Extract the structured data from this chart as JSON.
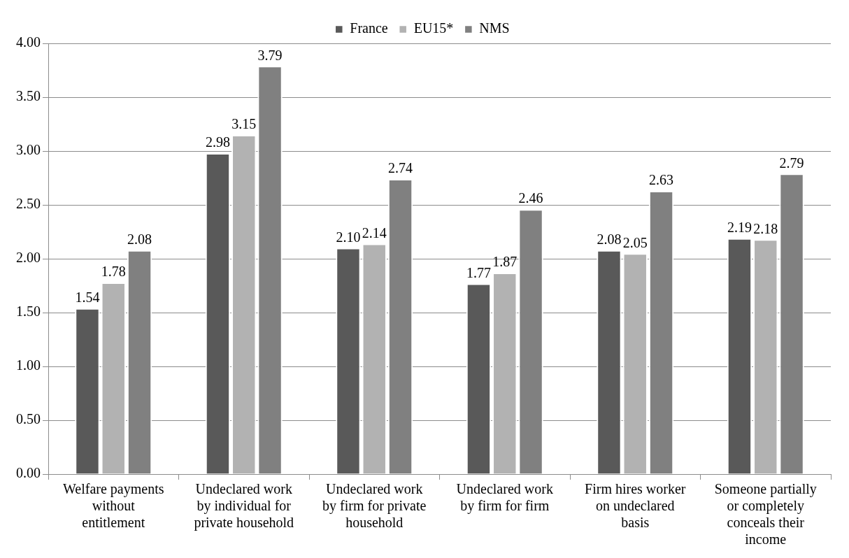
{
  "chart_data": {
    "type": "bar",
    "categories": [
      "Welfare payments without entitlement",
      "Undeclared work by individual for private household",
      "Undeclared work by firm for private household",
      "Undeclared work by firm for firm",
      "Firm hires worker on undeclared basis",
      "Someone partially or completely conceals their income"
    ],
    "series": [
      {
        "name": "France",
        "color": "#595959",
        "values": [
          1.54,
          2.98,
          2.1,
          1.77,
          2.08,
          2.19
        ],
        "value_labels": [
          "1.54",
          "2.98",
          "2.10",
          "1.77",
          "2.08",
          "2.19"
        ]
      },
      {
        "name": "EU15*",
        "color": "#b2b2b2",
        "values": [
          1.78,
          3.15,
          2.14,
          1.87,
          2.05,
          2.18
        ],
        "value_labels": [
          "1.78",
          "3.15",
          "2.14",
          "1.87",
          "2.05",
          "2.18"
        ]
      },
      {
        "name": "NMS",
        "color": "#808080",
        "values": [
          2.08,
          3.79,
          2.74,
          2.46,
          2.63,
          2.79
        ],
        "value_labels": [
          "2.08",
          "3.79",
          "2.74",
          "2.46",
          "2.63",
          "2.79"
        ]
      }
    ],
    "ylim": [
      0,
      4
    ],
    "yticks": [
      {
        "value": 0,
        "label": "0.00"
      },
      {
        "value": 0.5,
        "label": "0.50"
      },
      {
        "value": 1,
        "label": "1.00"
      },
      {
        "value": 1.5,
        "label": "1.50"
      },
      {
        "value": 2,
        "label": "2.00"
      },
      {
        "value": 2.5,
        "label": "2.50"
      },
      {
        "value": 3,
        "label": "3.00"
      },
      {
        "value": 3.5,
        "label": "3.50"
      },
      {
        "value": 4,
        "label": "4.00"
      }
    ],
    "grid": "y",
    "legend": "top"
  }
}
